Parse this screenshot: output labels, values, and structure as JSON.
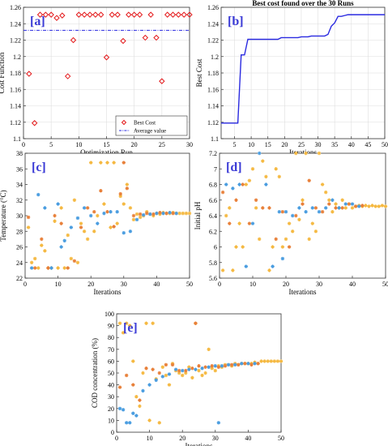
{
  "chart_data": [
    {
      "id": "a",
      "type": "scatter",
      "panel_label": "[a]",
      "xlabel": "Optimization Run",
      "ylabel": "Cost Function",
      "xlim": [
        0,
        30
      ],
      "ylim": [
        1.1,
        1.26
      ],
      "xticks": [
        0,
        5,
        10,
        15,
        20,
        25,
        30
      ],
      "yticks": [
        1.1,
        1.12,
        1.14,
        1.16,
        1.18,
        1.2,
        1.22,
        1.24,
        1.26
      ],
      "grid": true,
      "legend": "bottom-right",
      "series": [
        {
          "name": "Best Cost",
          "color": "#e41a1c",
          "marker": "diamond",
          "x": [
            1,
            2,
            3,
            4,
            5,
            6,
            7,
            8,
            9,
            10,
            11,
            12,
            13,
            14,
            15,
            16,
            17,
            18,
            19,
            20,
            21,
            22,
            23,
            24,
            25,
            26,
            27,
            28,
            29,
            30
          ],
          "y": [
            1.179,
            1.119,
            1.251,
            1.251,
            1.251,
            1.247,
            1.25,
            1.176,
            1.22,
            1.251,
            1.251,
            1.251,
            1.251,
            1.251,
            1.199,
            1.251,
            1.251,
            1.219,
            1.251,
            1.251,
            1.251,
            1.223,
            1.251,
            1.223,
            1.17,
            1.251,
            1.251,
            1.251,
            1.251,
            1.251
          ]
        },
        {
          "name": "Average value",
          "color": "#2a2ae0",
          "style": "dashdot",
          "x": [
            0,
            30
          ],
          "y": [
            1.232,
            1.232
          ]
        }
      ]
    },
    {
      "id": "b",
      "type": "line",
      "panel_label": "[b]",
      "title": "Best cost found over the 30 Runs",
      "xlabel": "Iterations",
      "ylabel": "Best Cost",
      "xlim": [
        1,
        50
      ],
      "ylim": [
        1.1,
        1.26
      ],
      "xticks": [
        5,
        10,
        15,
        20,
        25,
        30,
        35,
        40,
        45,
        50
      ],
      "yticks": [
        1.1,
        1.12,
        1.14,
        1.16,
        1.18,
        1.2,
        1.22,
        1.24,
        1.26
      ],
      "grid": true,
      "series": [
        {
          "color": "#2a2ae0",
          "x": [
            1,
            2,
            3,
            4,
            5,
            6,
            7,
            8,
            9,
            10,
            11,
            12,
            13,
            14,
            15,
            16,
            17,
            18,
            19,
            20,
            21,
            22,
            23,
            24,
            25,
            26,
            27,
            28,
            29,
            30,
            31,
            32,
            33,
            34,
            35,
            36,
            37,
            38,
            39,
            40,
            41,
            42,
            43,
            44,
            45,
            46,
            47,
            48,
            49,
            50
          ],
          "y": [
            1.119,
            1.119,
            1.119,
            1.119,
            1.119,
            1.119,
            1.202,
            1.202,
            1.221,
            1.221,
            1.221,
            1.221,
            1.221,
            1.221,
            1.221,
            1.221,
            1.221,
            1.221,
            1.223,
            1.223,
            1.223,
            1.223,
            1.223,
            1.223,
            1.224,
            1.224,
            1.224,
            1.225,
            1.225,
            1.225,
            1.225,
            1.225,
            1.227,
            1.237,
            1.241,
            1.249,
            1.249,
            1.25,
            1.251,
            1.251,
            1.251,
            1.251,
            1.251,
            1.251,
            1.251,
            1.251,
            1.251,
            1.251,
            1.251,
            1.251
          ]
        }
      ]
    },
    {
      "id": "c",
      "type": "scatter",
      "panel_label": "[c]",
      "xlabel": "Iterations",
      "ylabel": "Temperature (°C)",
      "xlim": [
        0,
        50
      ],
      "ylim": [
        22,
        38
      ],
      "xticks": [
        0,
        10,
        20,
        30,
        40,
        50
      ],
      "yticks": [
        22,
        24,
        26,
        28,
        30,
        32,
        34,
        36,
        38
      ],
      "grid": false,
      "series": [
        {
          "color": "#f5b942",
          "x": [
            1,
            2,
            3,
            4,
            5,
            6,
            7,
            8,
            9,
            10,
            11,
            12,
            13,
            14,
            15,
            16,
            17,
            18,
            19,
            20,
            21,
            22,
            23,
            24,
            25,
            26,
            27,
            28,
            29,
            30,
            31,
            32,
            33,
            34,
            35,
            36,
            37,
            38,
            39,
            40,
            41,
            42,
            43,
            44,
            45,
            46,
            47,
            48,
            49,
            50
          ],
          "y": [
            28.5,
            24.0,
            24.5,
            23.3,
            26.2,
            25.5,
            23.3,
            23.3,
            29.3,
            23.3,
            31.0,
            23.3,
            27.5,
            24.5,
            32.0,
            24.0,
            29.0,
            28.0,
            27.0,
            36.8,
            28.0,
            30.0,
            36.8,
            31.5,
            36.8,
            28.5,
            36.8,
            29.0,
            32.5,
            31.5,
            34.0,
            31.0,
            29.5,
            30.2,
            29.8,
            30.0,
            30.5,
            30.2,
            30.0,
            30.3,
            30.2,
            30.4,
            30.3,
            30.3,
            30.4,
            30.3,
            30.3,
            30.3,
            30.3,
            30.3
          ]
        },
        {
          "color": "#e8803a",
          "x": [
            1,
            3,
            5,
            7,
            9,
            11,
            13,
            15,
            17,
            19,
            21,
            23,
            25,
            27,
            29,
            30,
            31,
            33,
            35,
            37,
            39,
            41,
            43,
            45
          ],
          "y": [
            29.8,
            23.3,
            27.0,
            23.3,
            30.0,
            29.0,
            23.3,
            24.2,
            28.5,
            31.0,
            30.5,
            33.2,
            30.5,
            28.6,
            32.8,
            36.8,
            33.5,
            30.0,
            30.2,
            30.3,
            30.2,
            30.4,
            30.3,
            30.3
          ]
        },
        {
          "color": "#4a9de0",
          "x": [
            2,
            4,
            6,
            8,
            10,
            11,
            12,
            14,
            16,
            18,
            20,
            22,
            24,
            26,
            28,
            30,
            32,
            34,
            36,
            38,
            40,
            42,
            44,
            46
          ],
          "y": [
            23.3,
            32.7,
            31.0,
            23.3,
            31.5,
            26.0,
            26.8,
            28.5,
            29.7,
            31.0,
            30.0,
            29.0,
            30.3,
            30.5,
            30.5,
            27.8,
            28.0,
            29.5,
            30.1,
            30.2,
            30.3,
            30.3,
            30.4,
            30.3
          ]
        }
      ]
    },
    {
      "id": "d",
      "type": "scatter",
      "panel_label": "[d]",
      "xlabel": "Iterations",
      "ylabel": "Initial pH",
      "xlim": [
        0,
        50
      ],
      "ylim": [
        5.6,
        7.2
      ],
      "xticks": [
        0,
        10,
        20,
        30,
        40,
        50
      ],
      "yticks": [
        5.6,
        5.8,
        6,
        6.2,
        6.4,
        6.6,
        6.8,
        7,
        7.2
      ],
      "grid": false,
      "series": [
        {
          "color": "#f5b942",
          "x": [
            1,
            2,
            3,
            4,
            5,
            6,
            7,
            8,
            9,
            10,
            11,
            12,
            13,
            14,
            15,
            16,
            17,
            18,
            19,
            20,
            21,
            22,
            23,
            24,
            25,
            26,
            27,
            28,
            29,
            30,
            31,
            32,
            33,
            34,
            35,
            36,
            37,
            38,
            39,
            40,
            41,
            42,
            43,
            44,
            45,
            46,
            47,
            48,
            49,
            50
          ],
          "y": [
            5.7,
            6.4,
            6.5,
            5.7,
            6.0,
            6.3,
            6.0,
            6.8,
            6.85,
            7.0,
            6.5,
            6.1,
            7.1,
            6.9,
            5.7,
            6.0,
            7.0,
            6.9,
            6.0,
            6.1,
            6.3,
            6.2,
            7.2,
            6.35,
            6.6,
            7.2,
            6.1,
            6.3,
            6.2,
            7.2,
            6.8,
            6.7,
            6.6,
            6.45,
            6.55,
            6.5,
            6.6,
            6.5,
            6.55,
            6.5,
            6.52,
            6.53,
            6.52,
            6.53,
            6.52,
            6.53,
            6.52,
            6.52,
            6.53,
            6.52
          ]
        },
        {
          "color": "#e8803a",
          "x": [
            1,
            3,
            5,
            7,
            9,
            11,
            13,
            15,
            17,
            19,
            21,
            23,
            25,
            27,
            29,
            31,
            33,
            35,
            37,
            39,
            41,
            43
          ],
          "y": [
            6.7,
            6.3,
            6.6,
            6.8,
            6.3,
            6.6,
            6.5,
            6.5,
            6.1,
            6.45,
            6.0,
            6.4,
            6.55,
            6.85,
            6.5,
            6.45,
            6.55,
            6.5,
            6.5,
            6.55,
            6.52,
            6.53
          ]
        },
        {
          "color": "#4a9de0",
          "x": [
            2,
            4,
            6,
            8,
            10,
            12,
            14,
            16,
            18,
            19,
            20,
            22,
            24,
            26,
            28,
            30,
            32,
            34,
            36,
            38,
            40,
            42
          ],
          "y": [
            6.8,
            6.75,
            6.8,
            5.75,
            6.3,
            7.2,
            6.8,
            5.75,
            6.45,
            5.85,
            6.45,
            6.4,
            6.5,
            6.45,
            6.5,
            6.45,
            6.5,
            6.6,
            6.5,
            6.55,
            6.55,
            6.52
          ]
        }
      ]
    },
    {
      "id": "e",
      "type": "scatter",
      "panel_label": "[e]",
      "xlabel": "Iterations",
      "ylabel": "COD concentration (%)",
      "xlim": [
        0,
        50
      ],
      "ylim": [
        0,
        100
      ],
      "xticks": [
        0,
        10,
        20,
        30,
        40,
        50
      ],
      "yticks": [
        0,
        10,
        20,
        30,
        40,
        50,
        60,
        70,
        80,
        90,
        100
      ],
      "grid": false,
      "series": [
        {
          "color": "#f5b942",
          "x": [
            1,
            2,
            3,
            4,
            5,
            6,
            7,
            8,
            9,
            10,
            11,
            12,
            13,
            14,
            15,
            16,
            17,
            18,
            19,
            20,
            21,
            22,
            23,
            24,
            25,
            26,
            27,
            28,
            29,
            30,
            31,
            32,
            33,
            34,
            35,
            36,
            37,
            38,
            39,
            40,
            41,
            42,
            43,
            44,
            45,
            46,
            47,
            48,
            49,
            50
          ],
          "y": [
            92,
            84,
            92,
            90,
            60,
            30,
            22,
            50,
            92,
            10,
            92,
            45,
            8,
            55,
            48,
            40,
            58,
            52,
            50,
            48,
            50,
            55,
            46,
            92,
            52,
            48,
            50,
            70,
            54,
            52,
            56,
            55,
            57,
            57,
            56,
            58,
            57,
            58,
            58,
            58,
            58,
            59,
            58,
            60,
            60,
            60,
            60,
            60,
            60,
            60
          ]
        },
        {
          "color": "#e8803a",
          "x": [
            1,
            3,
            5,
            7,
            9,
            11,
            13,
            15,
            17,
            19,
            21,
            23,
            24,
            25,
            27,
            29,
            31,
            33,
            35,
            37,
            39,
            41,
            43
          ],
          "y": [
            38,
            48,
            40,
            27,
            54,
            53,
            50,
            57,
            57,
            52,
            52,
            54,
            92,
            56,
            55,
            56,
            55,
            56,
            57,
            57,
            58,
            57,
            58
          ]
        },
        {
          "color": "#4a9de0",
          "x": [
            1,
            2,
            3,
            4,
            5,
            6,
            8,
            10,
            12,
            14,
            16,
            18,
            20,
            22,
            24,
            26,
            28,
            30,
            31,
            32,
            34,
            36,
            38,
            40,
            42
          ],
          "y": [
            20,
            19,
            8,
            8,
            16,
            14,
            35,
            40,
            44,
            47,
            49,
            53,
            52,
            53,
            53,
            54,
            55,
            56,
            8,
            56,
            57,
            57,
            58,
            58,
            58
          ]
        }
      ]
    }
  ]
}
